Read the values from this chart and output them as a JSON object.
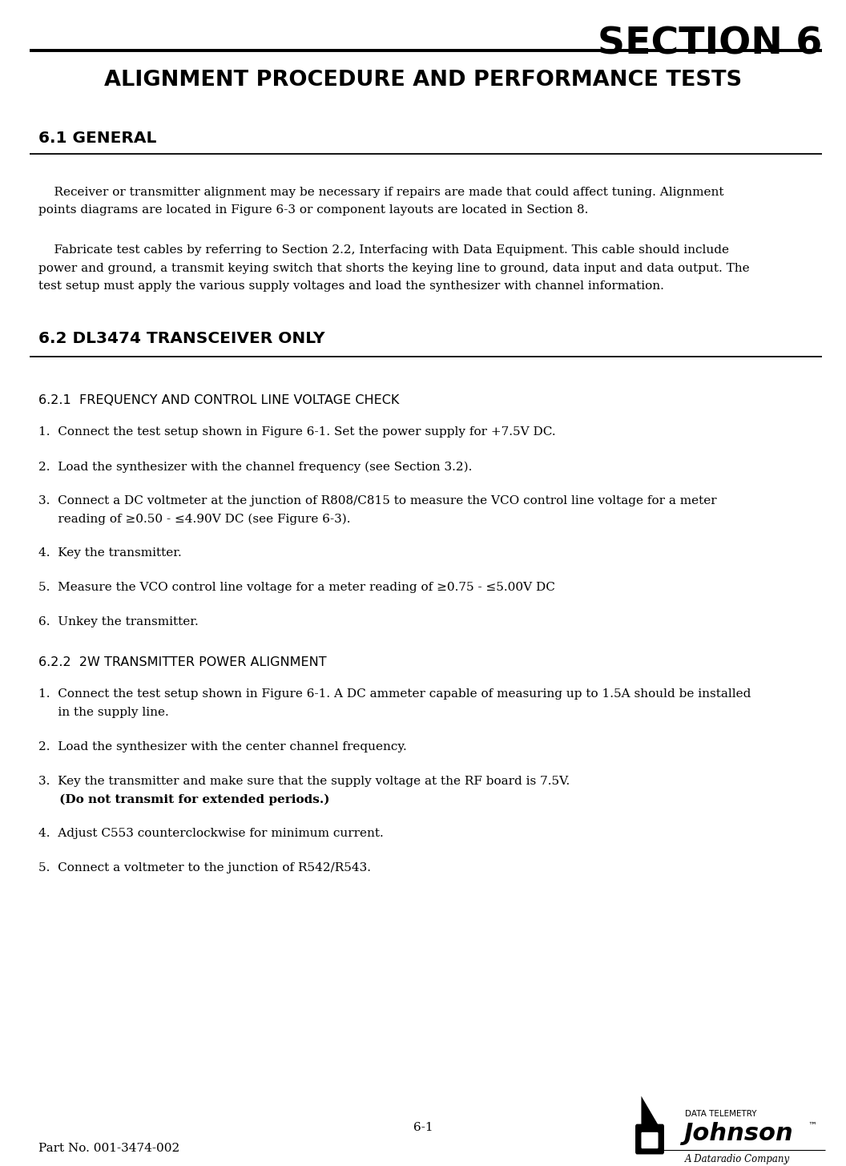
{
  "section_title": "SECTION 6",
  "top_title": "ALIGNMENT PROCEDURE AND PERFORMANCE TESTS",
  "section_61_header": "6.1 GENERAL",
  "section_62_header": "6.2 DL3474 TRANSCEIVER ONLY",
  "section_621_header": "6.2.1  FREQUENCY AND CONTROL LINE VOLTAGE CHECK",
  "section_622_header": "6.2.2  2W TRANSMITTER POWER ALIGNMENT",
  "para_61_1a": "    Receiver or transmitter alignment may be necessary if repairs are made that could affect tuning. Alignment",
  "para_61_1b": "points diagrams are located in Figure 6-3 or component layouts are located in Section 8.",
  "para_61_2a": "    Fabricate test cables by referring to Section 2.2, Interfacing with Data Equipment. This cable should include",
  "para_61_2b": "power and ground, a transmit keying switch that shorts the keying line to ground, data input and data output. The",
  "para_61_2c": "test setup must apply the various supply voltages and load the synthesizer with channel information.",
  "item621_1": "1.  Connect the test setup shown in Figure 6-1. Set the power supply for +7.5V DC.",
  "item621_2": "2.  Load the synthesizer with the channel frequency (see Section 3.2).",
  "item621_3a": "3.  Connect a DC voltmeter at the junction of R808/C815 to measure the VCO control line voltage for a meter",
  "item621_3b": "     reading of ≥0.50 - ≤4.90V DC (see Figure 6-3).",
  "item621_4": "4.  Key the transmitter.",
  "item621_5": "5.  Measure the VCO control line voltage for a meter reading of ≥0.75 - ≤5.00V DC",
  "item621_6": "6.  Unkey the transmitter.",
  "item622_1a": "1.  Connect the test setup shown in Figure 6-1. A DC ammeter capable of measuring up to 1.5A should be installed",
  "item622_1b": "     in the supply line.",
  "item622_2": "2.  Load the synthesizer with the center channel frequency.",
  "item622_3a": "3.  Key the transmitter and make sure that the supply voltage at the RF board is 7.5V.",
  "item622_3b": "     (Do not transmit for extended periods.)",
  "item622_4": "4.  Adjust C553 counterclockwise for minimum current.",
  "item622_5": "5.  Connect a voltmeter to the junction of R542/R543.",
  "footer_page": "6-1",
  "footer_partno": "Part No. 001-3474-002",
  "logo_data_telemetry": "DATA TELEMETRY",
  "logo_johnson": "Johnson",
  "logo_tm": "™",
  "logo_dataradio": "A Dataradio Company",
  "bg_color": "#ffffff",
  "lm": 0.045,
  "rm": 0.972,
  "fs_body": 11.0,
  "fs_section_header": 14.5,
  "fs_sub_header": 11.5,
  "fs_section_title": 34
}
